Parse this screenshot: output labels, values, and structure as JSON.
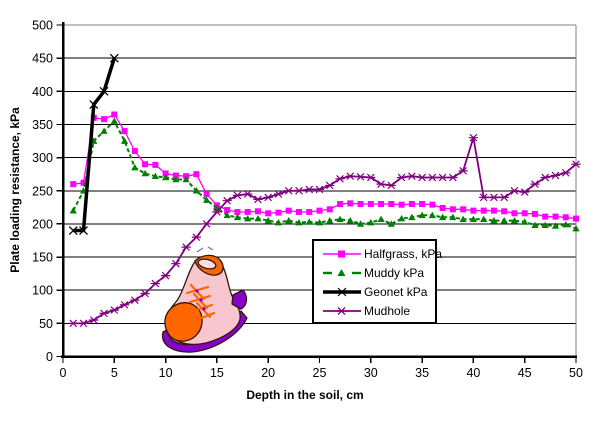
{
  "chart_data": {
    "type": "line",
    "title": "",
    "xlabel": "Depth in the soil, cm",
    "ylabel": "Plate loading resistance, kPa",
    "xlim": [
      0,
      50
    ],
    "ylim": [
      0,
      500
    ],
    "x_ticks": [
      0,
      5,
      10,
      15,
      20,
      25,
      30,
      35,
      40,
      45,
      50
    ],
    "y_ticks": [
      0,
      50,
      100,
      150,
      200,
      250,
      300,
      350,
      400,
      450,
      500
    ],
    "grid": "horizontal",
    "legend_position": "inside-bottom-center",
    "plot_border_color": "#808080",
    "gridline_color": "#000000",
    "annotations": [
      "shoe-clipart"
    ],
    "series": [
      {
        "name": "Halfgrass, kPa",
        "color": "#FF00FF",
        "marker": "square",
        "line": "solid-thin",
        "x": [
          1,
          2,
          3,
          4,
          5,
          6,
          7,
          8,
          9,
          10,
          11,
          12,
          13,
          14,
          15,
          16,
          17,
          18,
          19,
          20,
          21,
          22,
          23,
          24,
          25,
          26,
          27,
          28,
          29,
          30,
          31,
          32,
          33,
          34,
          35,
          36,
          37,
          38,
          39,
          40,
          41,
          42,
          43,
          44,
          45,
          46,
          47,
          48,
          49,
          50
        ],
        "values": [
          260,
          262,
          360,
          358,
          365,
          340,
          310,
          290,
          289,
          276,
          273,
          272,
          275,
          245,
          228,
          221,
          218,
          218,
          219,
          216,
          217,
          220,
          218,
          218,
          220,
          222,
          230,
          231,
          230,
          230,
          230,
          230,
          229,
          230,
          230,
          229,
          224,
          222,
          222,
          220,
          220,
          220,
          219,
          216,
          216,
          215,
          211,
          211,
          210,
          208
        ]
      },
      {
        "name": "Muddy kPa",
        "color": "#008000",
        "marker": "triangle",
        "line": "dashed",
        "x": [
          1,
          2,
          3,
          4,
          5,
          6,
          7,
          8,
          9,
          10,
          11,
          12,
          13,
          14,
          15,
          16,
          17,
          18,
          19,
          20,
          21,
          22,
          23,
          24,
          25,
          26,
          27,
          28,
          29,
          30,
          31,
          32,
          33,
          34,
          35,
          36,
          37,
          38,
          39,
          40,
          41,
          42,
          43,
          44,
          45,
          46,
          47,
          48,
          49,
          50
        ],
        "values": [
          220,
          250,
          325,
          340,
          355,
          325,
          285,
          276,
          272,
          270,
          267,
          267,
          250,
          236,
          224,
          213,
          210,
          208,
          208,
          205,
          202,
          205,
          202,
          203,
          202,
          205,
          207,
          205,
          200,
          202,
          207,
          200,
          208,
          210,
          213,
          213,
          210,
          210,
          207,
          207,
          207,
          205,
          205,
          205,
          203,
          198,
          198,
          197,
          199,
          193
        ]
      },
      {
        "name": "Geonet kPa",
        "color": "#000000",
        "marker": "x",
        "line": "solid-thick",
        "x": [
          1,
          2,
          3,
          4,
          5
        ],
        "values": [
          190,
          190,
          380,
          400,
          450
        ]
      },
      {
        "name": "Mudhole",
        "color": "#800080",
        "marker": "asterisk",
        "line": "solid",
        "x": [
          1,
          2,
          3,
          4,
          5,
          6,
          7,
          8,
          9,
          10,
          11,
          12,
          13,
          14,
          15,
          16,
          17,
          18,
          19,
          20,
          21,
          22,
          23,
          24,
          25,
          26,
          27,
          28,
          29,
          30,
          31,
          32,
          33,
          34,
          35,
          36,
          37,
          38,
          39,
          40,
          41,
          42,
          43,
          44,
          45,
          46,
          47,
          48,
          49,
          50
        ],
        "values": [
          50,
          50,
          55,
          65,
          70,
          78,
          85,
          95,
          110,
          122,
          140,
          165,
          180,
          200,
          218,
          235,
          243,
          245,
          237,
          240,
          245,
          250,
          250,
          252,
          252,
          258,
          268,
          272,
          271,
          270,
          260,
          258,
          270,
          272,
          270,
          270,
          270,
          270,
          280,
          330,
          240,
          240,
          240,
          250,
          248,
          260,
          270,
          273,
          277,
          290
        ]
      }
    ]
  }
}
